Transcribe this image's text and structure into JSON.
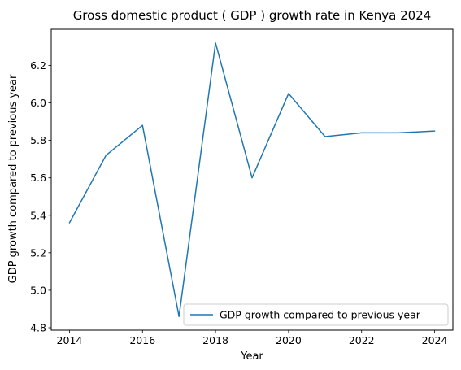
{
  "chart_data": {
    "type": "line",
    "title": "Gross domestic product ( GDP ) growth rate in Kenya 2024",
    "xlabel": "Year",
    "ylabel": "GDP growth compared to previous year",
    "x": [
      2014,
      2015,
      2016,
      2017,
      2018,
      2019,
      2020,
      2021,
      2022,
      2023,
      2024
    ],
    "series": [
      {
        "name": "GDP growth compared to previous year",
        "values": [
          5.36,
          5.72,
          5.88,
          4.86,
          6.32,
          5.6,
          6.05,
          5.82,
          5.84,
          5.84,
          5.85
        ],
        "color": "#1f77b4"
      }
    ],
    "xticks": [
      2014,
      2016,
      2018,
      2020,
      2022,
      2024
    ],
    "yticks": [
      4.8,
      5.0,
      5.2,
      5.4,
      5.6,
      5.8,
      6.0,
      6.2
    ],
    "xlim": [
      2013.5,
      2024.5
    ],
    "ylim": [
      4.787,
      6.393
    ],
    "grid": false,
    "legend_position": "lower right"
  }
}
